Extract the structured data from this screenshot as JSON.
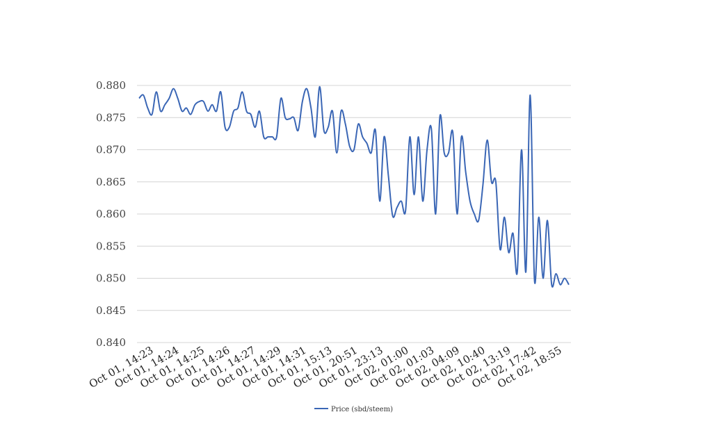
{
  "chart_data": {
    "type": "line",
    "title": "",
    "xlabel": "",
    "ylabel": "",
    "ylim": [
      0.84,
      0.88
    ],
    "yticks": [
      "0.840",
      "0.845",
      "0.850",
      "0.855",
      "0.860",
      "0.865",
      "0.870",
      "0.875",
      "0.880"
    ],
    "xticks": [
      "Oct 01, 14:23",
      "Oct 01, 14:24",
      "Oct 01, 14:25",
      "Oct 01, 14:26",
      "Oct 01, 14:27",
      "Oct 01, 14:29",
      "Oct 01, 14:31",
      "Oct 01, 15:13",
      "Oct 01, 20:51",
      "Oct 01, 23:13",
      "Oct 02, 01:00",
      "Oct 02, 01:03",
      "Oct 02, 04:09",
      "Oct 02, 10:40",
      "Oct 02, 13:19",
      "Oct 02, 17:42",
      "Oct 02, 18:55"
    ],
    "grid": true,
    "legend_position": "bottom",
    "series": [
      {
        "name": "Price (sbd/steem)",
        "color": "#3a66b5",
        "values": [
          0.878,
          0.8785,
          0.8765,
          0.8755,
          0.879,
          0.876,
          0.877,
          0.878,
          0.8795,
          0.878,
          0.876,
          0.8765,
          0.8755,
          0.877,
          0.8775,
          0.8775,
          0.876,
          0.877,
          0.876,
          0.879,
          0.8735,
          0.8735,
          0.876,
          0.8765,
          0.879,
          0.876,
          0.8755,
          0.8735,
          0.876,
          0.872,
          0.872,
          0.872,
          0.872,
          0.878,
          0.875,
          0.8748,
          0.875,
          0.873,
          0.8775,
          0.8795,
          0.8765,
          0.872,
          0.8798,
          0.873,
          0.8735,
          0.876,
          0.8695,
          0.876,
          0.874,
          0.8705,
          0.87,
          0.874,
          0.872,
          0.871,
          0.8695,
          0.873,
          0.862,
          0.872,
          0.866,
          0.8597,
          0.861,
          0.862,
          0.8605,
          0.872,
          0.863,
          0.872,
          0.862,
          0.87,
          0.8733,
          0.86,
          0.8752,
          0.8695,
          0.8695,
          0.8727,
          0.86,
          0.872,
          0.8665,
          0.862,
          0.86,
          0.859,
          0.8645,
          0.8715,
          0.865,
          0.865,
          0.8545,
          0.8595,
          0.854,
          0.857,
          0.851,
          0.87,
          0.851,
          0.8785,
          0.8497,
          0.8595,
          0.85,
          0.859,
          0.849,
          0.8507,
          0.849,
          0.85,
          0.849
        ]
      }
    ]
  }
}
